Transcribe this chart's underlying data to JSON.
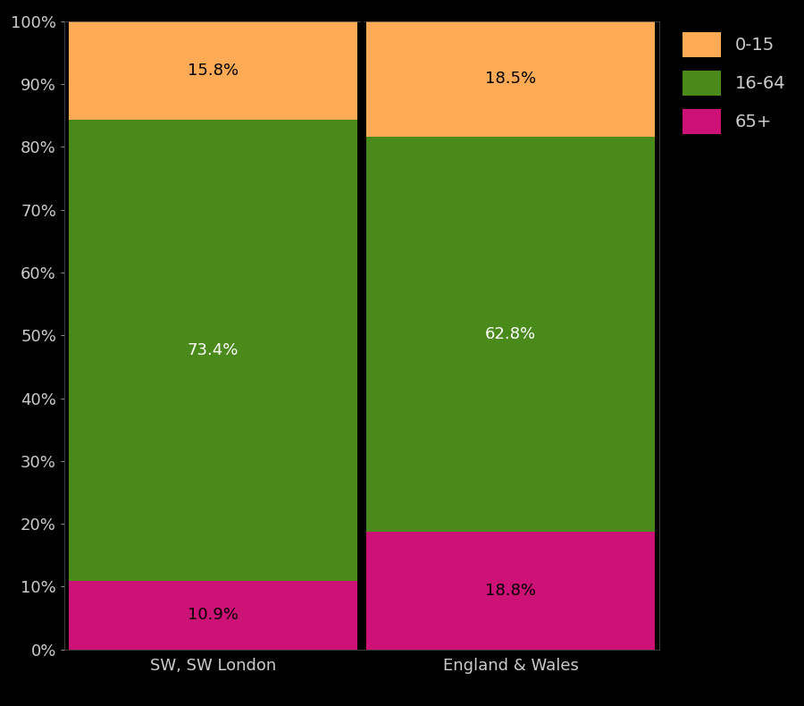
{
  "categories": [
    "SW, SW London",
    "England & Wales"
  ],
  "segments": {
    "65+": [
      10.9,
      18.8
    ],
    "16-64": [
      73.4,
      62.8
    ],
    "0-15": [
      15.8,
      18.5
    ]
  },
  "colors": {
    "0-15": "#FFAA55",
    "16-64": "#4A8A1A",
    "65+": "#CC1177"
  },
  "segment_order": [
    "65+",
    "16-64",
    "0-15"
  ],
  "labels": {
    "SW, SW London": {
      "65+": "10.9%",
      "16-64": "73.4%",
      "0-15": "15.8%"
    },
    "England & Wales": {
      "65+": "18.8%",
      "16-64": "62.8%",
      "0-15": "18.5%"
    }
  },
  "background_color": "#000000",
  "text_color": "#CCCCCC",
  "bar_edge_color": "#000000",
  "divider_color": "#000000",
  "ylim": [
    0,
    100
  ],
  "ytick_labels": [
    "0%",
    "10%",
    "20%",
    "30%",
    "40%",
    "50%",
    "60%",
    "70%",
    "80%",
    "90%",
    "100%"
  ],
  "ytick_values": [
    0,
    10,
    20,
    30,
    40,
    50,
    60,
    70,
    80,
    90,
    100
  ],
  "legend_labels": [
    "0-15",
    "16-64",
    "65+"
  ],
  "label_fontsize": 13,
  "tick_fontsize": 13,
  "legend_fontsize": 14,
  "label_color_16_64": "#FFFFFF",
  "label_color_65": "#000000",
  "label_color_015": "#000000"
}
